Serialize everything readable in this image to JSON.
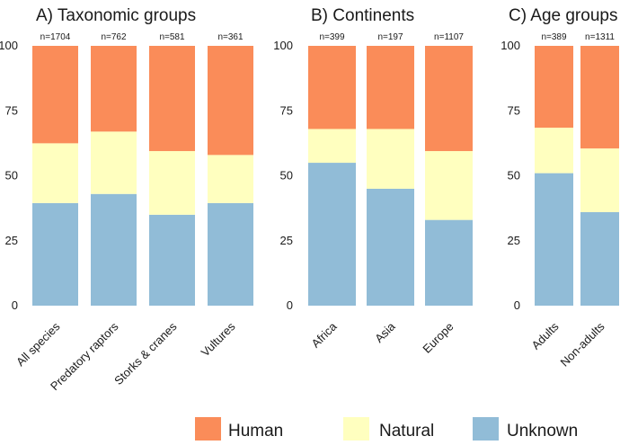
{
  "colors": {
    "human": "#fa8c59",
    "natural": "#ffffbf",
    "unknown": "#91bcd7"
  },
  "legend": [
    {
      "key": "human",
      "label": "Human"
    },
    {
      "key": "natural",
      "label": "Natural"
    },
    {
      "key": "unknown",
      "label": "Unknown"
    }
  ],
  "chart_data": [
    {
      "type": "bar",
      "stacked": true,
      "title": "A) Taxonomic groups",
      "ylim": [
        0,
        100
      ],
      "yticks": [
        0,
        25,
        50,
        75,
        100
      ],
      "categories": [
        "All species",
        "Predatory raptors",
        "Storks & cranes",
        "Vultures"
      ],
      "n_labels": [
        "n=1704",
        "n=762",
        "n=581",
        "n=361"
      ],
      "series": [
        {
          "name": "Unknown",
          "key": "unknown",
          "values": [
            39.5,
            43,
            35,
            39.5
          ]
        },
        {
          "name": "Natural",
          "key": "natural",
          "values": [
            23,
            24,
            24.5,
            18.5
          ]
        },
        {
          "name": "Human",
          "key": "human",
          "values": [
            37.5,
            33,
            40.5,
            42
          ]
        }
      ]
    },
    {
      "type": "bar",
      "stacked": true,
      "title": "B) Continents",
      "ylim": [
        0,
        100
      ],
      "yticks": [
        0,
        25,
        50,
        75,
        100
      ],
      "categories": [
        "Africa",
        "Asia",
        "Europe"
      ],
      "n_labels": [
        "n=399",
        "n=197",
        "n=1107"
      ],
      "series": [
        {
          "name": "Unknown",
          "key": "unknown",
          "values": [
            55,
            45,
            33
          ]
        },
        {
          "name": "Natural",
          "key": "natural",
          "values": [
            13,
            23,
            26.5
          ]
        },
        {
          "name": "Human",
          "key": "human",
          "values": [
            32,
            32,
            40.5
          ]
        }
      ]
    },
    {
      "type": "bar",
      "stacked": true,
      "title": "C) Age groups",
      "ylim": [
        0,
        100
      ],
      "yticks": [
        0,
        25,
        50,
        75,
        100
      ],
      "categories": [
        "Adults",
        "Non-adults"
      ],
      "n_labels": [
        "n=389",
        "n=1311"
      ],
      "series": [
        {
          "name": "Unknown",
          "key": "unknown",
          "values": [
            51,
            36
          ]
        },
        {
          "name": "Natural",
          "key": "natural",
          "values": [
            17.5,
            24.5
          ]
        },
        {
          "name": "Human",
          "key": "human",
          "values": [
            31.5,
            39.5
          ]
        }
      ]
    }
  ]
}
